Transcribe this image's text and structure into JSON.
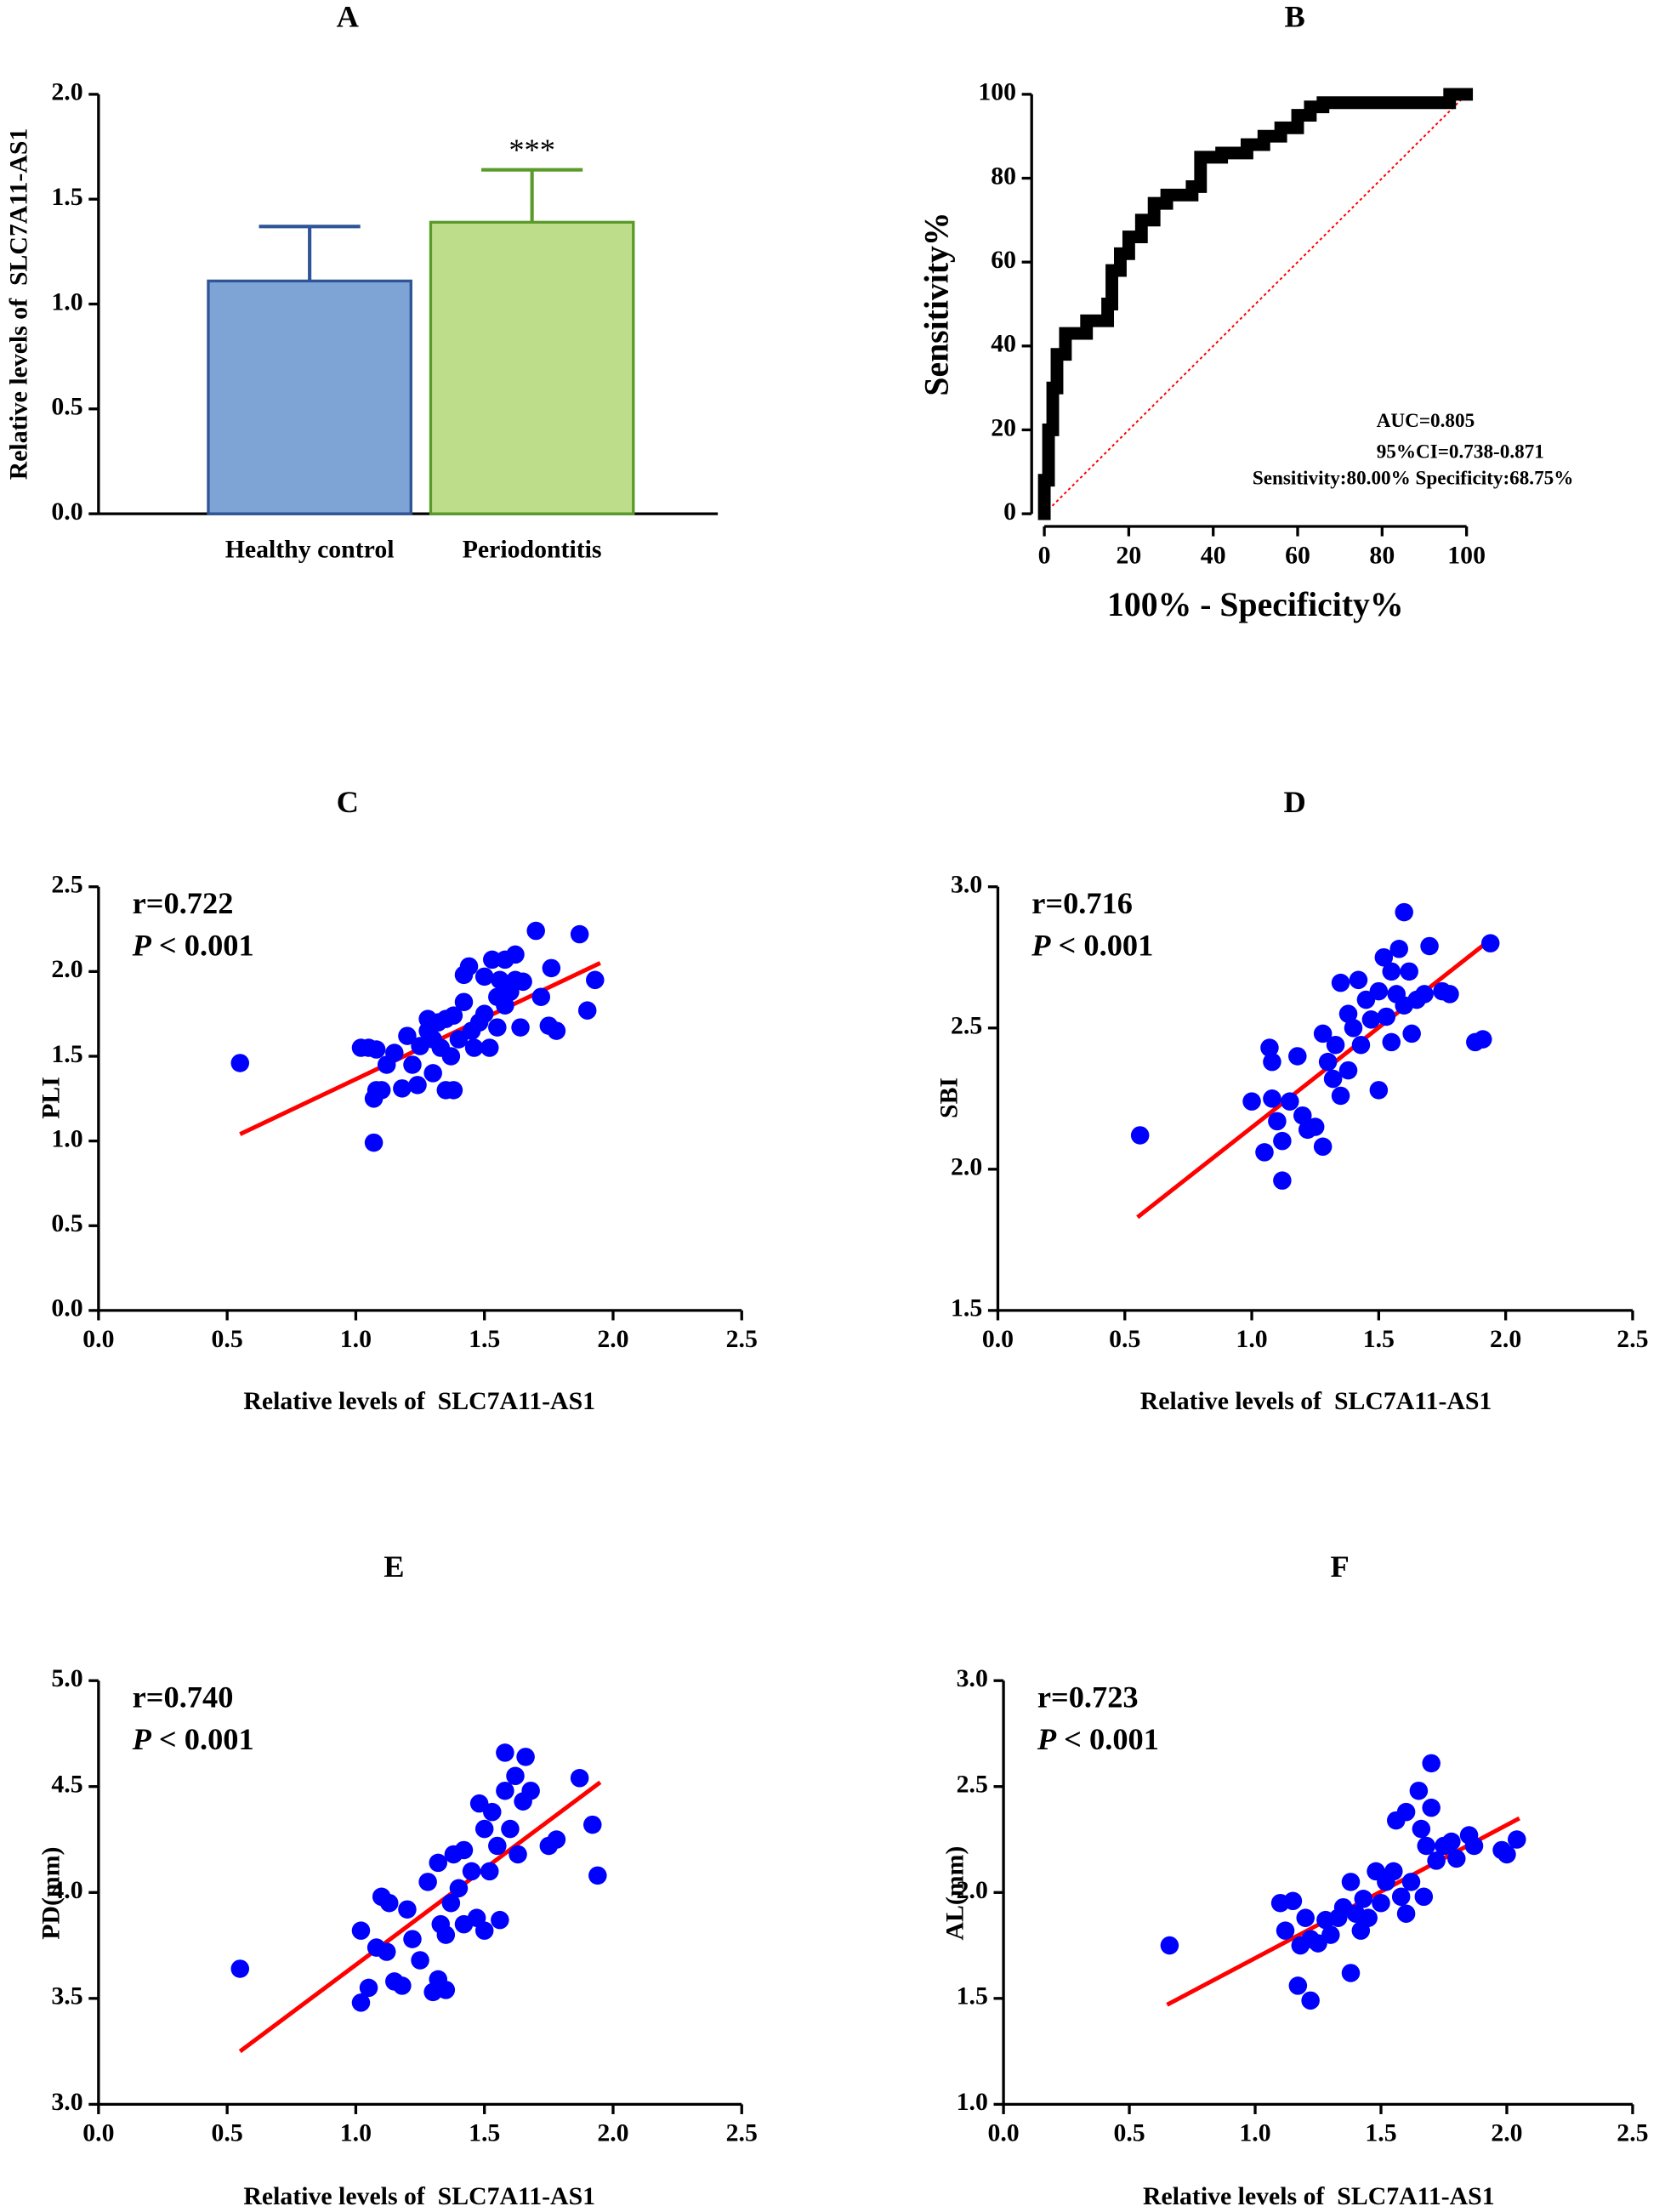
{
  "chart_data": [
    {
      "type": "bar",
      "title": "A",
      "ylabel": "Relative levels of  SLC7A11-AS1",
      "categories": [
        "Healthy control",
        "Periodontitis"
      ],
      "values": [
        1.11,
        1.39
      ],
      "errors": [
        0.26,
        0.25
      ],
      "colors": [
        "#7ea3d5",
        "#bedd8b"
      ],
      "edge_colors": [
        "#2f5597",
        "#5a9a2a"
      ],
      "significance": [
        null,
        "***"
      ],
      "ylim": [
        0,
        2.0
      ],
      "yticks": [
        {
          "value": 0,
          "label": "0.0"
        },
        0.5,
        {
          "value": 1.0,
          "label": "1.0"
        },
        1.5,
        {
          "value": 2.0,
          "label": "2.0"
        }
      ]
    },
    {
      "type": "line",
      "title": "B",
      "xlabel": "100% - Specificity%",
      "ylabel": "Sensitivity%",
      "color": "#000000",
      "x": [
        0,
        0,
        1,
        1,
        2,
        2,
        3,
        3,
        5,
        5,
        10,
        10,
        15,
        15,
        16,
        16,
        18,
        18,
        20,
        20,
        23,
        23,
        26,
        26,
        29,
        29,
        35,
        35,
        37,
        37,
        42,
        42,
        48,
        48,
        52,
        52,
        56,
        56,
        60,
        60,
        63,
        63,
        66,
        66,
        96,
        96,
        100
      ],
      "values": [
        0,
        8,
        8,
        20,
        20,
        30,
        30,
        38,
        38,
        43,
        43,
        46,
        46,
        50,
        50,
        58,
        58,
        62,
        62,
        66,
        66,
        70,
        70,
        74,
        74,
        76,
        76,
        78,
        78,
        85,
        85,
        86,
        86,
        88,
        88,
        90,
        90,
        92,
        92,
        95,
        95,
        97,
        97,
        98,
        98,
        100,
        100
      ],
      "reference": {
        "x": [
          0,
          100
        ],
        "values": [
          0,
          100
        ],
        "color": "#ff0000"
      },
      "annotations": [
        "AUC=0.805",
        "95%CI=0.738-0.871",
        "Sensitivity:80.00% Specificity:68.75%"
      ],
      "xlim": [
        0,
        100
      ],
      "ylim": [
        0,
        100
      ],
      "xticks": [
        0,
        20,
        40,
        60,
        80,
        100
      ],
      "yticks": [
        0,
        20,
        40,
        60,
        80,
        100
      ]
    },
    {
      "type": "scatter",
      "title": "C",
      "xlabel": "Relative levels of  SLC7A11-AS1",
      "ylabel": "PLI",
      "r_label": "r=0.722",
      "p_label": {
        "symbol": "P",
        "text": " < 0.001"
      },
      "color": "#0000ff",
      "x": [
        0.55,
        1.02,
        1.05,
        1.08,
        1.07,
        1.08,
        1.1,
        1.07,
        1.12,
        1.15,
        1.18,
        1.2,
        1.22,
        1.24,
        1.25,
        1.28,
        1.28,
        1.3,
        1.3,
        1.32,
        1.33,
        1.35,
        1.35,
        1.37,
        1.38,
        1.38,
        1.4,
        1.42,
        1.42,
        1.44,
        1.45,
        1.46,
        1.48,
        1.5,
        1.5,
        1.52,
        1.53,
        1.55,
        1.55,
        1.56,
        1.58,
        1.58,
        1.6,
        1.62,
        1.62,
        1.64,
        1.65,
        1.7,
        1.72,
        1.75,
        1.76,
        1.78,
        1.87,
        1.9,
        1.93
      ],
      "values": [
        1.46,
        1.55,
        1.55,
        1.54,
        1.25,
        1.3,
        1.3,
        0.99,
        1.45,
        1.52,
        1.31,
        1.62,
        1.45,
        1.33,
        1.56,
        1.65,
        1.72,
        1.6,
        1.4,
        1.7,
        1.55,
        1.72,
        1.3,
        1.5,
        1.3,
        1.74,
        1.6,
        1.82,
        1.98,
        2.03,
        1.65,
        1.55,
        1.7,
        1.75,
        1.97,
        1.55,
        2.07,
        1.85,
        1.67,
        1.95,
        2.07,
        1.8,
        1.88,
        2.1,
        1.95,
        1.67,
        1.94,
        2.24,
        1.85,
        1.68,
        2.02,
        1.65,
        2.22,
        1.77,
        1.95
      ],
      "fit": {
        "x": [
          0.55,
          1.95
        ],
        "values": [
          1.04,
          2.05
        ],
        "color": "#ff0000"
      },
      "xlim": [
        0,
        2.5
      ],
      "ylim": [
        0,
        2.5
      ],
      "xticks": [
        {
          "value": 0,
          "label": "0.0"
        },
        0.5,
        {
          "value": 1.0,
          "label": "1.0"
        },
        1.5,
        {
          "value": 2.0,
          "label": "2.0"
        },
        2.5
      ],
      "yticks": [
        {
          "value": 0,
          "label": "0.0"
        },
        0.5,
        {
          "value": 1.0,
          "label": "1.0"
        },
        1.5,
        {
          "value": 2.0,
          "label": "2.0"
        },
        2.5
      ]
    },
    {
      "type": "scatter",
      "title": "D",
      "xlabel": "Relative levels of  SLC7A11-AS1",
      "ylabel": "SBI",
      "r_label": "r=0.716",
      "p_label": {
        "symbol": "P",
        "text": " < 0.001"
      },
      "color": "#0000ff",
      "x": [
        0.56,
        1.0,
        1.05,
        1.07,
        1.08,
        1.08,
        1.1,
        1.12,
        1.12,
        1.15,
        1.18,
        1.2,
        1.22,
        1.25,
        1.28,
        1.28,
        1.3,
        1.32,
        1.33,
        1.35,
        1.35,
        1.38,
        1.38,
        1.4,
        1.42,
        1.43,
        1.45,
        1.47,
        1.5,
        1.5,
        1.52,
        1.53,
        1.55,
        1.55,
        1.57,
        1.58,
        1.6,
        1.6,
        1.62,
        1.63,
        1.65,
        1.68,
        1.7,
        1.75,
        1.78,
        1.88,
        1.91,
        1.94
      ],
      "values": [
        2.12,
        2.24,
        2.06,
        2.43,
        2.25,
        2.38,
        2.17,
        1.96,
        2.1,
        2.24,
        2.4,
        2.19,
        2.14,
        2.15,
        2.08,
        2.48,
        2.38,
        2.32,
        2.44,
        2.26,
        2.66,
        2.35,
        2.55,
        2.5,
        2.67,
        2.44,
        2.6,
        2.53,
        2.28,
        2.63,
        2.75,
        2.54,
        2.7,
        2.45,
        2.62,
        2.78,
        2.91,
        2.58,
        2.7,
        2.48,
        2.6,
        2.62,
        2.79,
        2.63,
        2.62,
        2.45,
        2.46,
        2.8
      ],
      "fit": {
        "x": [
          0.55,
          1.95
        ],
        "values": [
          1.83,
          2.82
        ],
        "color": "#ff0000"
      },
      "xlim": [
        0,
        2.5
      ],
      "ylim": [
        1.5,
        3.0
      ],
      "xticks": [
        {
          "value": 0,
          "label": "0.0"
        },
        0.5,
        {
          "value": 1.0,
          "label": "1.0"
        },
        1.5,
        {
          "value": 2.0,
          "label": "2.0"
        },
        2.5
      ],
      "yticks": [
        1.5,
        {
          "value": 2.0,
          "label": "2.0"
        },
        2.5,
        {
          "value": 3.0,
          "label": "3.0"
        }
      ]
    },
    {
      "type": "scatter",
      "title": "E",
      "xlabel": "Relative levels of  SLC7A11-AS1",
      "ylabel": "PD(mm)",
      "r_label": "r=0.740",
      "p_label": {
        "symbol": "P",
        "text": " < 0.001"
      },
      "color": "#0000ff",
      "x": [
        0.55,
        1.02,
        1.02,
        1.05,
        1.08,
        1.1,
        1.12,
        1.13,
        1.15,
        1.18,
        1.2,
        1.22,
        1.25,
        1.28,
        1.3,
        1.32,
        1.32,
        1.33,
        1.35,
        1.35,
        1.37,
        1.38,
        1.4,
        1.42,
        1.42,
        1.45,
        1.47,
        1.48,
        1.5,
        1.5,
        1.52,
        1.53,
        1.55,
        1.56,
        1.58,
        1.58,
        1.6,
        1.62,
        1.63,
        1.65,
        1.66,
        1.68,
        1.75,
        1.78,
        1.87,
        1.92,
        1.94
      ],
      "values": [
        3.64,
        3.48,
        3.82,
        3.55,
        3.74,
        3.98,
        3.72,
        3.95,
        3.58,
        3.56,
        3.92,
        3.78,
        3.68,
        4.05,
        3.53,
        4.14,
        3.59,
        3.85,
        3.8,
        3.54,
        3.95,
        4.18,
        4.02,
        3.85,
        4.2,
        4.1,
        3.88,
        4.42,
        3.82,
        4.3,
        4.1,
        4.38,
        4.22,
        3.87,
        4.66,
        4.48,
        4.3,
        4.55,
        4.18,
        4.43,
        4.64,
        4.48,
        4.22,
        4.25,
        4.54,
        4.32,
        4.08
      ],
      "fit": {
        "x": [
          0.55,
          1.95
        ],
        "values": [
          3.25,
          4.52
        ],
        "color": "#ff0000"
      },
      "xlim": [
        0,
        2.5
      ],
      "ylim": [
        3.0,
        5.0
      ],
      "xticks": [
        {
          "value": 0,
          "label": "0.0"
        },
        0.5,
        {
          "value": 1.0,
          "label": "1.0"
        },
        1.5,
        {
          "value": 2.0,
          "label": "2.0"
        },
        2.5
      ],
      "yticks": [
        {
          "value": 3.0,
          "label": "3.0"
        },
        3.5,
        {
          "value": 4.0,
          "label": "4.0"
        },
        4.5,
        {
          "value": 5.0,
          "label": "5.0"
        }
      ]
    },
    {
      "type": "scatter",
      "title": "F",
      "xlabel": "Relative levels of  SLC7A11-AS1",
      "ylabel": "AL(mm)",
      "r_label": "r=0.723",
      "p_label": {
        "symbol": "P",
        "text": " < 0.001"
      },
      "color": "#0000ff",
      "x": [
        0.66,
        1.1,
        1.12,
        1.15,
        1.17,
        1.18,
        1.2,
        1.22,
        1.22,
        1.25,
        1.28,
        1.3,
        1.33,
        1.35,
        1.38,
        1.38,
        1.4,
        1.42,
        1.43,
        1.45,
        1.48,
        1.5,
        1.52,
        1.55,
        1.56,
        1.58,
        1.6,
        1.6,
        1.62,
        1.65,
        1.66,
        1.67,
        1.68,
        1.7,
        1.7,
        1.72,
        1.75,
        1.78,
        1.8,
        1.85,
        1.87,
        1.98,
        2.0,
        2.04
      ],
      "values": [
        1.75,
        1.95,
        1.82,
        1.96,
        1.56,
        1.75,
        1.88,
        1.49,
        1.78,
        1.76,
        1.87,
        1.8,
        1.88,
        1.93,
        2.05,
        1.62,
        1.9,
        1.82,
        1.97,
        1.88,
        2.1,
        1.95,
        2.05,
        2.1,
        2.34,
        1.98,
        2.38,
        1.9,
        2.05,
        2.48,
        2.3,
        1.98,
        2.22,
        2.61,
        2.4,
        2.15,
        2.22,
        2.24,
        2.16,
        2.27,
        2.22,
        2.2,
        2.18,
        2.25
      ],
      "fit": {
        "x": [
          0.65,
          2.05
        ],
        "values": [
          1.47,
          2.35
        ],
        "color": "#ff0000"
      },
      "xlim": [
        0,
        2.5
      ],
      "ylim": [
        1.0,
        3.0
      ],
      "xticks": [
        {
          "value": 0,
          "label": "0.0"
        },
        0.5,
        {
          "value": 1.0,
          "label": "1.0"
        },
        1.5,
        {
          "value": 2.0,
          "label": "2.0"
        },
        2.5
      ],
      "yticks": [
        {
          "value": 1.0,
          "label": "1.0"
        },
        1.5,
        {
          "value": 2.0,
          "label": "2.0"
        },
        2.5,
        {
          "value": 3.0,
          "label": "3.0"
        }
      ]
    }
  ]
}
